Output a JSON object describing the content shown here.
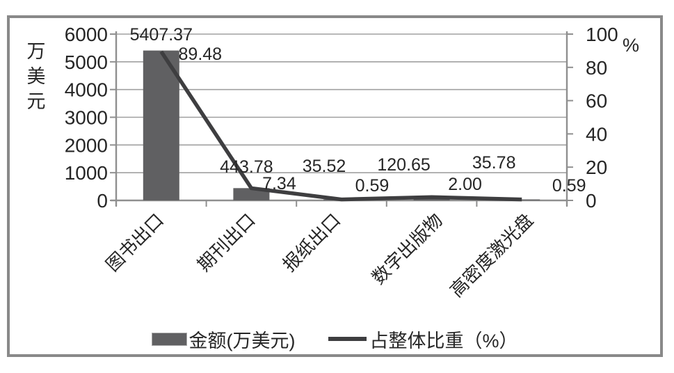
{
  "chart_data": {
    "type": "combo-bar-line",
    "categories": [
      "图书出口",
      "期刊出口",
      "报纸出口",
      "数字出版物",
      "高密度激光盘"
    ],
    "series": [
      {
        "name": "金额(万美元)",
        "type": "bar",
        "axis": "left",
        "values": [
          5407.37,
          443.78,
          35.52,
          120.65,
          35.78
        ],
        "labels": [
          "5407.37",
          "443.78",
          "35.52",
          "120.65",
          "35.78"
        ],
        "color": "#606062"
      },
      {
        "name": "占整体比重（%）",
        "type": "line",
        "axis": "right",
        "values": [
          89.48,
          7.34,
          0.59,
          2.0,
          0.59
        ],
        "labels": [
          "89.48",
          "7.34",
          "0.59",
          "2.00",
          "0.59"
        ],
        "color": "#3e3e40"
      }
    ],
    "left_axis": {
      "title": "万美元",
      "min": 0,
      "max": 6000,
      "step": 1000,
      "tick_labels": [
        "6000",
        "5000",
        "4000",
        "3000",
        "2000",
        "1000",
        "0"
      ]
    },
    "right_axis": {
      "title": "%",
      "min": 0,
      "max": 100,
      "step": 20,
      "tick_labels": [
        "100",
        "80",
        "60",
        "40",
        "20",
        "0"
      ]
    },
    "grid": true,
    "legend_position": "bottom"
  },
  "legend": {
    "items": [
      {
        "label": "金额(万美元)",
        "swatch": "bar",
        "color": "#606062"
      },
      {
        "label": "占整体比重（%）",
        "swatch": "line",
        "color": "#3e3e40"
      }
    ]
  },
  "colors": {
    "bar_fill": "#606062",
    "line_stroke": "#3e3e40",
    "gridline": "#a0a0a0",
    "axis_line": "#8f8f8f",
    "frame_border": "#898989",
    "text": "#262626",
    "background": "#ffffff"
  }
}
